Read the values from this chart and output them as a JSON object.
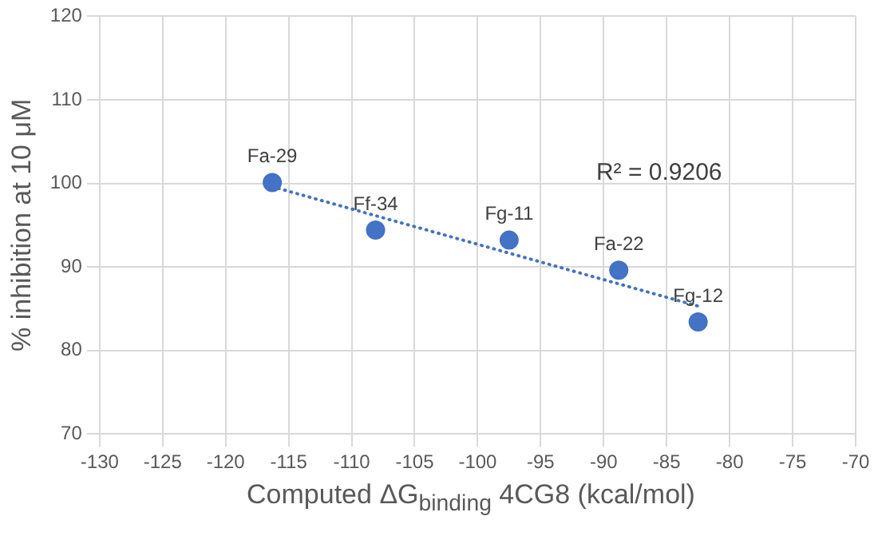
{
  "chart_data": {
    "type": "scatter",
    "xlabel": "Computed ΔG$_{binding}$ 4CG8 (kcal/mol)",
    "ylabel": "% inhibition at 10 μM",
    "xlim": [
      -130,
      -70
    ],
    "xticks": [
      -130,
      -125,
      -120,
      -115,
      -110,
      -105,
      -100,
      -95,
      -90,
      -85,
      -80,
      -75,
      -70
    ],
    "ylim": [
      70,
      120
    ],
    "yticks": [
      70,
      80,
      90,
      100,
      110,
      120
    ],
    "grid": true,
    "legend": false,
    "marker": "circle",
    "series": [
      {
        "type": "scatter",
        "color": "#4472c4",
        "x": [
          -116.3,
          -108.1,
          -97.5,
          -88.8,
          -82.5
        ],
        "values": [
          100.1,
          94.4,
          93.2,
          89.6,
          83.4
        ]
      },
      {
        "type": "line",
        "color": "#4472c4",
        "x": [
          -116.3,
          -82.5
        ],
        "values": [
          99.6,
          85.3
        ],
        "line_style": "dotted",
        "marker": "none"
      }
    ],
    "annotations": [
      {
        "text": "Fa-29",
        "x": -116.3,
        "y": 100.1
      },
      {
        "text": "Ff-34",
        "x": -108.1,
        "y": 94.4
      },
      {
        "text": "Fg-11",
        "x": -97.5,
        "y": 93.2
      },
      {
        "text": "Fa-22",
        "x": -88.8,
        "y": 89.6
      },
      {
        "text": "Fg-12",
        "x": -82.5,
        "y": 83.4
      },
      "R² = 0.9206"
    ]
  }
}
